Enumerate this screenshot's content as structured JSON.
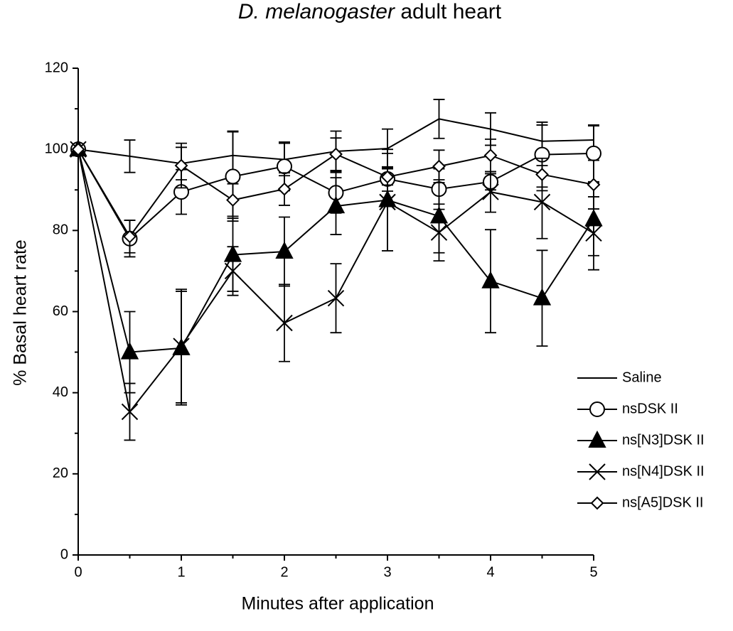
{
  "chart_data": {
    "type": "line",
    "title": {
      "species": "D. melanogaster",
      "text": "adult heart"
    },
    "x_label": "Minutes after application",
    "y_label": "% Basal heart rate",
    "x": [
      0,
      0.5,
      1,
      1.5,
      2,
      2.5,
      3,
      3.5,
      4,
      4.5,
      5
    ],
    "xlim": [
      0,
      5
    ],
    "xticks": [
      0,
      1,
      2,
      3,
      4,
      5
    ],
    "xminorticks": [
      0.5,
      1.5,
      2.5,
      3.5,
      4.5
    ],
    "ylim": [
      0,
      120
    ],
    "yticks": [
      0,
      20,
      40,
      60,
      80,
      100,
      120
    ],
    "yminorticks": [
      10,
      30,
      50,
      70,
      90,
      110
    ],
    "legend": "lower-right",
    "series": [
      {
        "name": "Saline",
        "color": "#000000",
        "marker": "none",
        "values": [
          100,
          98.3,
          96.5,
          98.5,
          97.5,
          99.5,
          100.2,
          107.5,
          105,
          102,
          102.3
        ],
        "errors": [
          0,
          4,
          4,
          6,
          4,
          5,
          4.8,
          4.8,
          4,
          4,
          3.5
        ]
      },
      {
        "name": "nsDSK II",
        "color": "#000000",
        "marker": "circle",
        "values": [
          100,
          78,
          89.5,
          93.3,
          95.8,
          89.3,
          92.7,
          90.2,
          92,
          98.7,
          99
        ],
        "errors": [
          0,
          4.5,
          5.5,
          11,
          6,
          5,
          3,
          5,
          2,
          8,
          7
        ]
      },
      {
        "name": "ns[N3]DSK II",
        "color": "#000000",
        "marker": "triangle",
        "values": [
          100,
          50,
          51,
          74,
          74.8,
          86,
          87.5,
          83.5,
          67.5,
          63.3,
          82.8
        ],
        "errors": [
          0,
          10,
          14,
          9,
          8.5,
          7,
          12.5,
          9,
          12.7,
          11.8,
          9
        ]
      },
      {
        "name": "ns[N4]DSK II",
        "color": "#000000",
        "marker": "cross",
        "values": [
          100,
          35.3,
          51.5,
          70,
          57.2,
          63.3,
          87,
          79.5,
          89.5,
          87,
          79.3
        ],
        "errors": [
          0,
          7,
          14,
          6,
          9.5,
          8.5,
          12,
          7,
          5,
          9,
          9
        ]
      },
      {
        "name": "ns[A5]DSK II",
        "color": "#000000",
        "marker": "diamond",
        "values": [
          100,
          78.5,
          96,
          87.5,
          90.2,
          98.8,
          93.2,
          95.8,
          98.5,
          93.8,
          91.3
        ],
        "errors": [
          0,
          4,
          5.5,
          4,
          4,
          4,
          2,
          4,
          4,
          4,
          6
        ]
      }
    ]
  }
}
